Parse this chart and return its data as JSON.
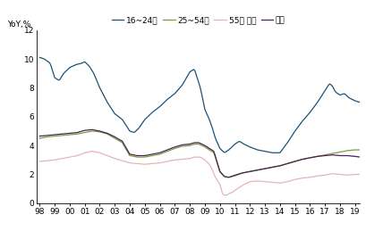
{
  "title": "",
  "ylabel": "YoY,%",
  "ylim": [
    0,
    12
  ],
  "yticks": [
    0,
    2,
    4,
    6,
    8,
    10,
    12
  ],
  "background_color": "#ffffff",
  "legend_labels": [
    "16~24세",
    "25~54세",
    "55세 이상",
    "전체"
  ],
  "colors": {
    "age16_24": "#1a5276",
    "age25_54": "#7d9b3a",
    "age55plus": "#e8b4b8",
    "total": "#4a235a"
  },
  "x_start": 1997.8,
  "x_end": 2019.3,
  "xtick_labels": [
    "98",
    "99",
    "00",
    "01",
    "02",
    "03",
    "04",
    "05",
    "06",
    "07",
    "08",
    "09",
    "10",
    "11",
    "12",
    "13",
    "14",
    "15",
    "16",
    "17",
    "18",
    "19"
  ],
  "xtick_positions": [
    1998,
    1999,
    2000,
    2001,
    2002,
    2003,
    2004,
    2005,
    2006,
    2007,
    2008,
    2009,
    2010,
    2011,
    2012,
    2013,
    2014,
    2015,
    2016,
    2017,
    2018,
    2019
  ]
}
